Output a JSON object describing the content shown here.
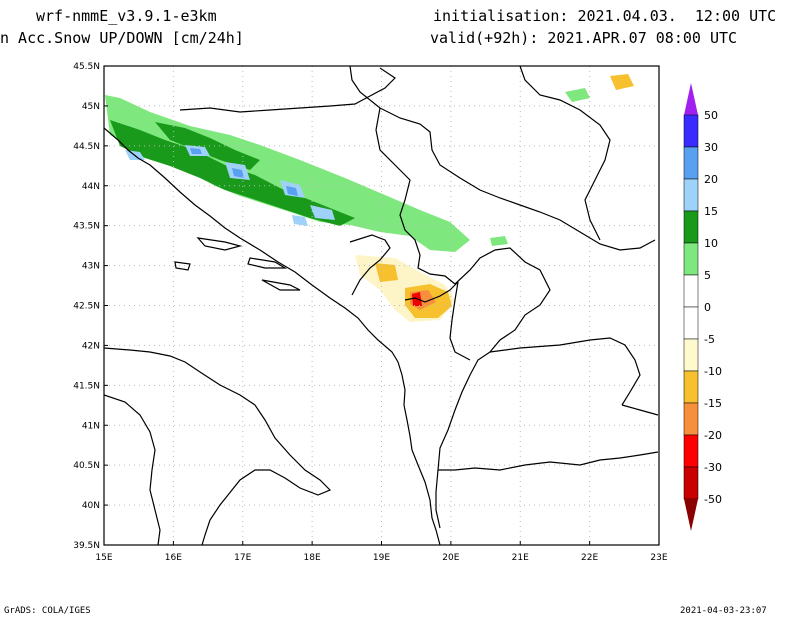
{
  "header": {
    "model": "wrf-nmmE_v3.9.1-e3km",
    "field": "n Acc.Snow UP/DOWN [cm/24h]",
    "init": "initialisation: 2021.04.03.  12:00 UTC",
    "valid": "valid(+92h): 2021.APR.07 08:00 UTC"
  },
  "footer": {
    "source": "GrADS: COLA/IGES",
    "timestamp": "2021-04-03-23:07"
  },
  "map": {
    "lon_labels": [
      "15E",
      "16E",
      "17E",
      "18E",
      "19E",
      "20E",
      "21E",
      "22E",
      "23E"
    ],
    "lat_labels": [
      "45.5N",
      "45N",
      "44.5N",
      "44N",
      "43.5N",
      "43N",
      "42.5N",
      "42N",
      "41.5N",
      "41N",
      "40.5N",
      "40N",
      "39.5N"
    ],
    "grid": true,
    "colors": {
      "border": "#000000",
      "grid": "#bbbbbb",
      "snow_up_5": "#7ee87e",
      "snow_up_10": "#1a9a1a",
      "snow_up_15": "#9ed2f8",
      "snow_up_20": "#5aa0f0",
      "snow_up_30": "#4747ff",
      "snow_down_5": "#fdf5c8",
      "snow_down_10": "#f6c02e",
      "snow_down_15": "#f7903c",
      "snow_down_20": "#f00000"
    }
  },
  "colorbar": {
    "labels": [
      "50",
      "30",
      "20",
      "15",
      "10",
      "5",
      "0",
      "-5",
      "-10",
      "-15",
      "-20",
      "-30",
      "-50"
    ],
    "colors": [
      "#3a2cff",
      "#5aa0f0",
      "#9ed2f8",
      "#1a9a1a",
      "#7ee87e",
      "#ffffff",
      "#ffffff",
      "#fffacd",
      "#f6c02e",
      "#f7903c",
      "#ff0000",
      "#c80000"
    ],
    "top_arrow_color": "#a020f0",
    "bottom_arrow_color": "#8b0000"
  }
}
